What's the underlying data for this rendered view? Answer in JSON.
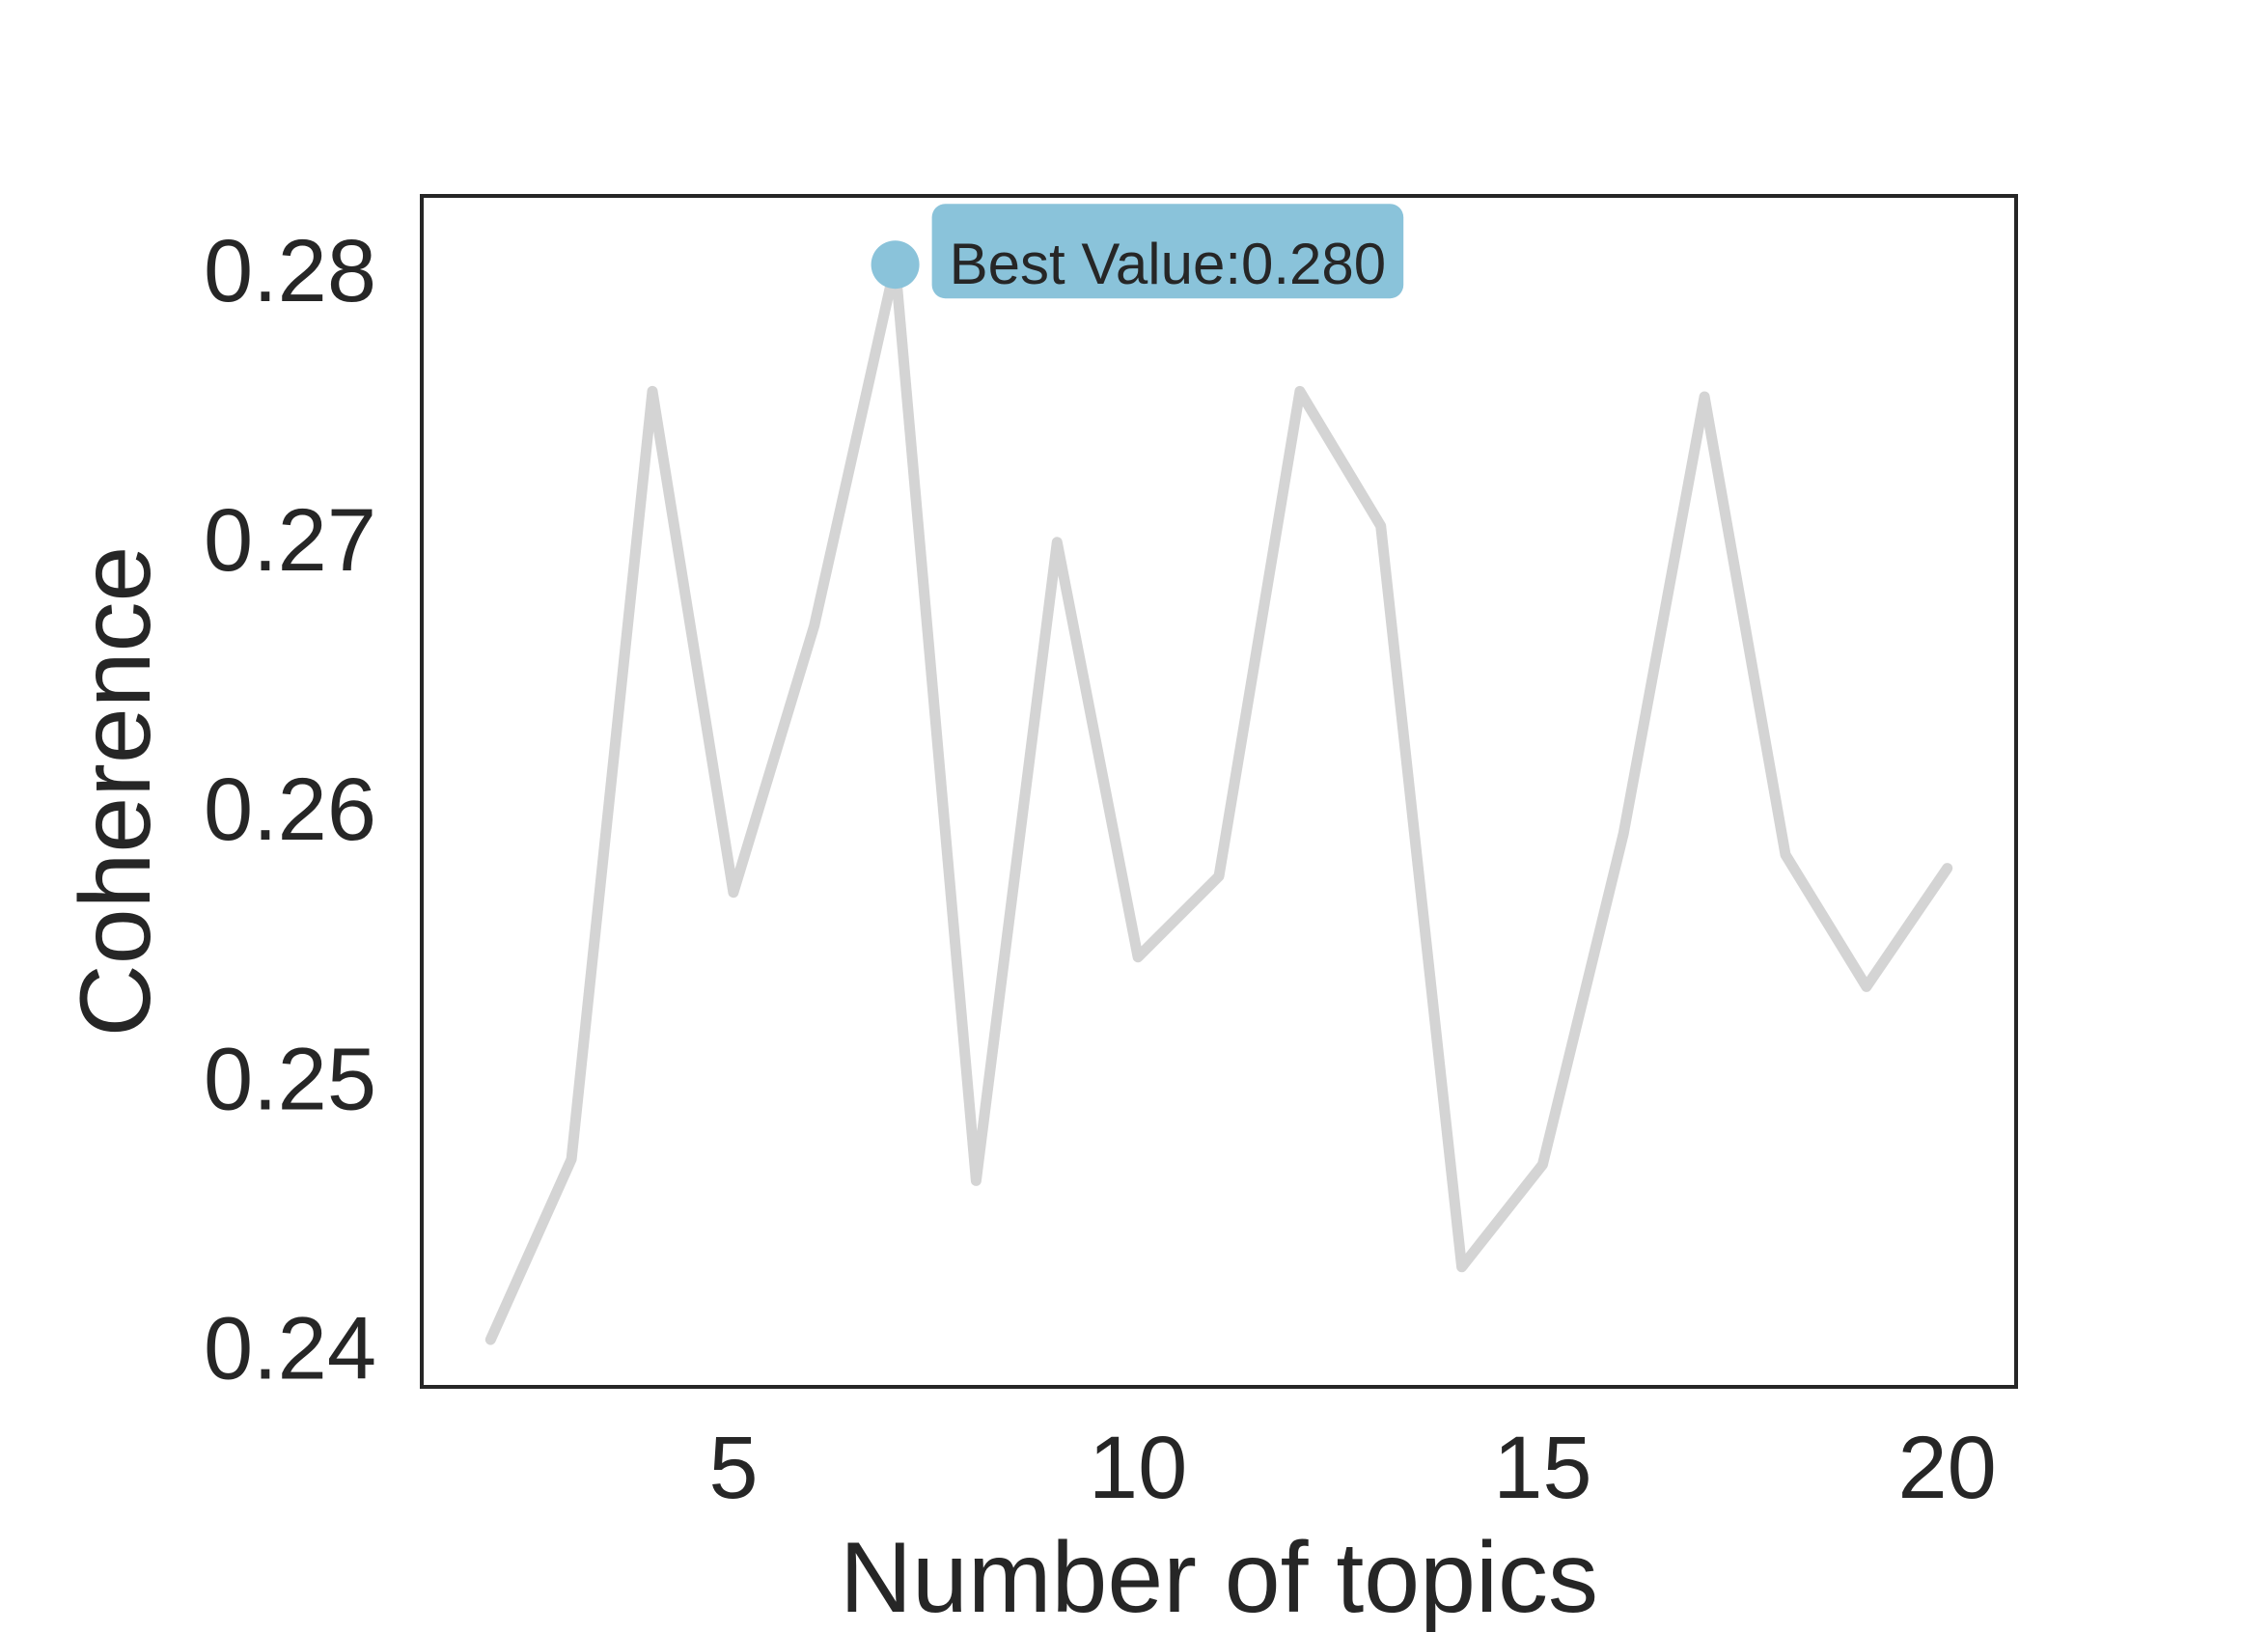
{
  "chart_data": {
    "type": "line",
    "title": "",
    "xlabel": "Number of topics",
    "ylabel": "Coherence",
    "x": [
      2,
      3,
      4,
      5,
      6,
      7,
      8,
      9,
      10,
      11,
      12,
      13,
      14,
      15,
      16,
      17,
      18,
      19,
      20
    ],
    "series": [
      {
        "values": [
          0.2403,
          0.247,
          0.2755,
          0.2569,
          0.2668,
          0.2802,
          0.2462,
          0.2699,
          0.2545,
          0.2575,
          0.2755,
          0.2705,
          0.243,
          0.2468,
          0.2591,
          0.2753,
          0.2583,
          0.2534,
          0.2578
        ],
        "color": "#d4d4d4"
      }
    ],
    "xlim": [
      1.15,
      20.85
    ],
    "ylim": [
      0.23855,
      0.28275
    ],
    "x_ticks": [
      5,
      10,
      15,
      20
    ],
    "x_tick_labels": [
      "5",
      "10",
      "15",
      "20"
    ],
    "y_ticks": [
      0.24,
      0.25,
      0.26,
      0.27,
      0.28
    ],
    "y_tick_labels": [
      "0.24",
      "0.25",
      "0.26",
      "0.27",
      "0.28"
    ],
    "grid": false,
    "legend": "none",
    "highlight": {
      "x": 7,
      "y": 0.2802,
      "color": "#8ac3da",
      "label": "Best Value:0.280"
    }
  }
}
